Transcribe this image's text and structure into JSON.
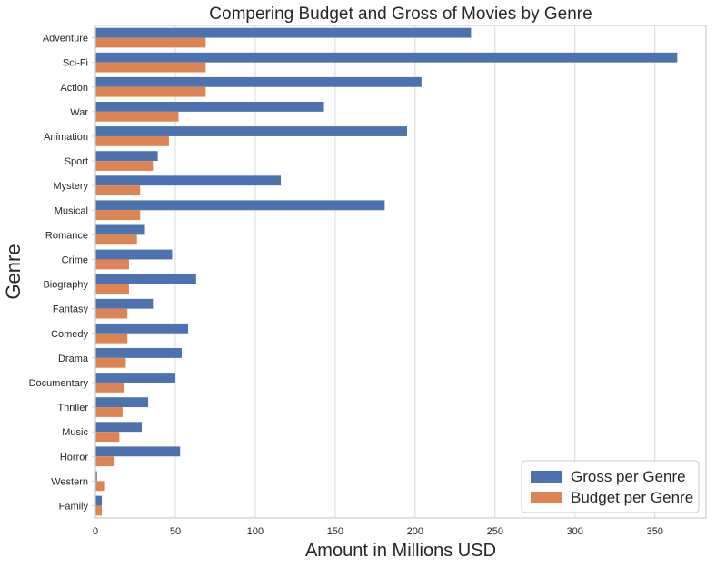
{
  "chart_data": {
    "type": "bar",
    "orientation": "horizontal",
    "title": "Compering Budget and Gross of Movies by Genre",
    "xlabel": "Amount in Millions USD",
    "ylabel": "Genre",
    "xlim": [
      0,
      382
    ],
    "xticks": [
      0,
      50,
      100,
      150,
      200,
      250,
      300,
      350
    ],
    "grid": "x-major",
    "legend_position": "lower-right",
    "colors": {
      "gross": "#4c72b0",
      "budget": "#dd8452"
    },
    "categories": [
      "Adventure",
      "Sci-Fi",
      "Action",
      "War",
      "Animation",
      "Sport",
      "Mystery",
      "Musical",
      "Romance",
      "Crime",
      "Biography",
      "Fantasy",
      "Comedy",
      "Drama",
      "Documentary",
      "Thriller",
      "Music",
      "Horror",
      "Western",
      "Family"
    ],
    "series": [
      {
        "name": "Gross per Genre",
        "color": "#4c72b0",
        "values": [
          235,
          364,
          204,
          143,
          195,
          39,
          116,
          181,
          31,
          48,
          63,
          36,
          58,
          54,
          50,
          33,
          29,
          53,
          1,
          4
        ]
      },
      {
        "name": "Budget per Genre",
        "color": "#dd8452",
        "values": [
          69,
          69,
          69,
          52,
          46,
          36,
          28,
          28,
          26,
          21,
          21,
          20,
          20,
          19,
          18,
          17,
          15,
          12,
          6,
          4
        ]
      }
    ]
  }
}
